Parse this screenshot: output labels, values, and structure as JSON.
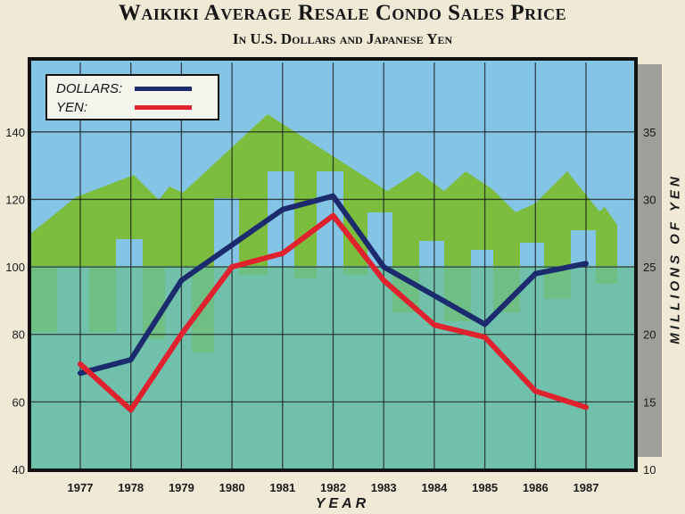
{
  "chart_data": {
    "type": "line",
    "title": "Waikiki Average Resale Condo Sales Price",
    "subtitle": "In U.S. Dollars and Japanese Yen",
    "xlabel": "YEAR",
    "ylabel_right": "MILLIONS OF YEN",
    "categories": [
      "1977",
      "1978",
      "1979",
      "1980",
      "1981",
      "1982",
      "1983",
      "1984",
      "1985",
      "1986",
      "1987"
    ],
    "y_left": {
      "ticks": [
        "40",
        "60",
        "80",
        "100",
        "120",
        "140"
      ],
      "range": [
        40,
        150
      ]
    },
    "y_right": {
      "ticks": [
        "10",
        "15",
        "20",
        "25",
        "30",
        "35"
      ],
      "range": [
        10,
        37.5
      ]
    },
    "series": [
      {
        "name": "DOLLARS:",
        "axis": "left",
        "color": "#1c2a6e",
        "values": [
          68.5,
          72.5,
          96,
          106.5,
          117,
          121,
          100,
          91.5,
          83,
          98,
          101
        ]
      },
      {
        "name": "YEN:",
        "axis": "right",
        "color": "#e0212e",
        "values": [
          17.8,
          14.4,
          20,
          25,
          26,
          28.8,
          24,
          20.7,
          19.8,
          15.8,
          14.6
        ]
      }
    ],
    "grid": true,
    "legend": "top-left",
    "colors": {
      "sky": "#84c5e6",
      "ground": "#6cbf9a",
      "buildings": "#7cbd3e",
      "frame": "#121212",
      "sidebar": "#9e9e9a"
    }
  }
}
